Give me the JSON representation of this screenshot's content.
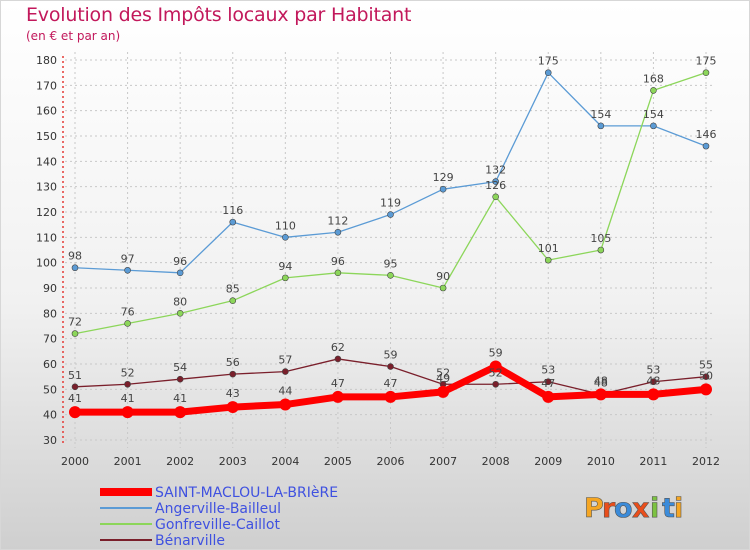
{
  "header": {
    "title": "Evolution des Impôts locaux par Habitant",
    "subtitle": "(en € et par an)"
  },
  "logo": {
    "text": "Proxiti",
    "letters": [
      "P",
      "r",
      "o",
      "x",
      "i",
      "t",
      "i"
    ],
    "colors": [
      "#f5a623",
      "#e94e1b",
      "#3b8bd9",
      "#e94e1b",
      "#7cc242",
      "#3b8bd9",
      "#f5a623"
    ]
  },
  "chart_data": {
    "type": "line",
    "title": "Evolution des Impôts locaux par Habitant",
    "subtitle": "(en € et par an)",
    "xlabel": "",
    "ylabel": "",
    "x": [
      "2000",
      "2001",
      "2002",
      "2003",
      "2004",
      "2005",
      "2006",
      "2007",
      "2008",
      "2009",
      "2010",
      "2011",
      "2012"
    ],
    "ylim": [
      30,
      180
    ],
    "yticks": [
      30,
      40,
      50,
      60,
      70,
      80,
      90,
      100,
      110,
      120,
      130,
      140,
      150,
      160,
      170,
      180
    ],
    "grid": true,
    "legend": "bottom-left",
    "series": [
      {
        "name": "SAINT-MACLOU-LA-BRIèRE",
        "color": "#ff0000",
        "width": 7,
        "values": [
          41,
          41,
          41,
          43,
          44,
          47,
          47,
          49,
          59,
          47,
          48,
          48,
          50
        ]
      },
      {
        "name": "Angerville-Bailleul",
        "color": "#5b9bd5",
        "width": 1.3,
        "values": [
          98,
          97,
          96,
          116,
          110,
          112,
          119,
          129,
          132,
          175,
          154,
          154,
          146
        ]
      },
      {
        "name": "Gonfreville-Caillot",
        "color": "#8cd65a",
        "width": 1.3,
        "values": [
          72,
          76,
          80,
          85,
          94,
          96,
          95,
          90,
          126,
          101,
          105,
          168,
          175
        ]
      },
      {
        "name": "Bénarville",
        "color": "#7a1f2b",
        "width": 1.3,
        "values": [
          51,
          52,
          54,
          56,
          57,
          62,
          59,
          52,
          52,
          53,
          48,
          53,
          55
        ]
      }
    ]
  }
}
